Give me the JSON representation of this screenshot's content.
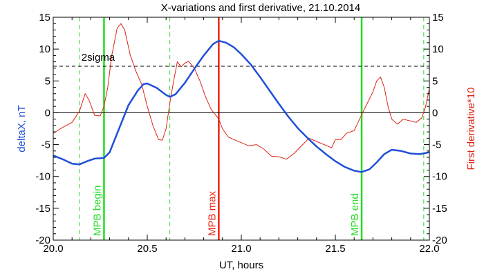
{
  "chart_data": {
    "type": "line",
    "title": "X-variations and first derivative, 21.10.2014",
    "xlabel": "UT, hours",
    "ylabel_left": "deltaX, nT",
    "ylabel_right": "First derivative*10",
    "xlim": [
      20.0,
      22.0
    ],
    "ylim": [
      -20,
      15
    ],
    "x_ticks": [
      "20.0",
      "20.5",
      "21.0",
      "21.5",
      "22.0"
    ],
    "x_tick_values": [
      20.0,
      20.5,
      21.0,
      21.5,
      22.0
    ],
    "y_ticks": [
      15,
      10,
      5,
      0,
      -5,
      -10,
      -15,
      -20
    ],
    "y_tick_labels": [
      "15",
      "10",
      "5",
      "0",
      "-5",
      "-10",
      "-15",
      "-20"
    ],
    "colors": {
      "deltax": "#1f4fd6",
      "derivative": "#dd2211",
      "mpb_boundary": "#22dd22",
      "mpb_max": "#ee2211",
      "reference": "#000000",
      "left_axis_label": "#1f4fd6",
      "right_axis_label": "#dd2211"
    },
    "threshold": {
      "label": "2sigma",
      "value": 7.3
    },
    "zero_line": 0,
    "markers": [
      {
        "label": "MPB begin",
        "x": 20.27,
        "style": "solid",
        "color": "#22dd22"
      },
      {
        "label": "MPB max",
        "x": 20.88,
        "style": "solid",
        "color": "#ee2211"
      },
      {
        "label": "MPB end",
        "x": 21.64,
        "style": "solid",
        "color": "#22dd22"
      }
    ],
    "dashed_markers": [
      20.14,
      20.62,
      21.97
    ],
    "series": [
      {
        "name": "deltaX",
        "color": "#1f4fd6",
        "x": [
          20.0,
          20.05,
          20.1,
          20.14,
          20.18,
          20.22,
          20.27,
          20.3,
          20.35,
          20.4,
          20.45,
          20.48,
          20.5,
          20.55,
          20.6,
          20.62,
          20.65,
          20.7,
          20.75,
          20.8,
          20.85,
          20.88,
          20.92,
          20.96,
          21.0,
          21.05,
          21.1,
          21.15,
          21.2,
          21.25,
          21.3,
          21.35,
          21.4,
          21.45,
          21.5,
          21.55,
          21.6,
          21.64,
          21.68,
          21.72,
          21.76,
          21.8,
          21.85,
          21.9,
          21.95,
          22.0
        ],
        "y": [
          -6.7,
          -7.3,
          -8.0,
          -8.1,
          -7.6,
          -7.2,
          -7.1,
          -6.2,
          -2.5,
          1.2,
          3.5,
          4.5,
          4.6,
          3.9,
          2.8,
          2.5,
          2.9,
          4.7,
          6.9,
          9.0,
          10.8,
          11.3,
          11.0,
          10.3,
          9.2,
          7.6,
          5.6,
          3.5,
          1.4,
          -0.6,
          -2.4,
          -3.9,
          -5.3,
          -6.5,
          -7.6,
          -8.5,
          -9.1,
          -9.3,
          -8.9,
          -7.8,
          -6.5,
          -5.8,
          -6.0,
          -6.4,
          -6.5,
          -6.2
        ]
      },
      {
        "name": "First derivative*10",
        "color": "#dd2211",
        "x": [
          20.0,
          20.05,
          20.1,
          20.14,
          20.17,
          20.19,
          20.22,
          20.25,
          20.27,
          20.29,
          20.31,
          20.34,
          20.36,
          20.38,
          20.41,
          20.44,
          20.47,
          20.5,
          20.53,
          20.56,
          20.58,
          20.6,
          20.62,
          20.64,
          20.66,
          20.68,
          20.7,
          20.72,
          20.75,
          20.78,
          20.81,
          20.84,
          20.86,
          20.88,
          20.9,
          20.93,
          20.96,
          21.0,
          21.04,
          21.08,
          21.12,
          21.16,
          21.2,
          21.24,
          21.28,
          21.32,
          21.36,
          21.4,
          21.44,
          21.48,
          21.5,
          21.53,
          21.56,
          21.6,
          21.64,
          21.67,
          21.7,
          21.72,
          21.74,
          21.76,
          21.78,
          21.8,
          21.83,
          21.86,
          21.9,
          21.93,
          21.96,
          21.98,
          22.0
        ],
        "y": [
          -3.2,
          -2.3,
          -1.5,
          0.3,
          3.0,
          2.0,
          -0.4,
          -0.5,
          1.0,
          4.0,
          8.8,
          13.3,
          14.0,
          13.0,
          9.0,
          6.5,
          4.5,
          1.0,
          -2.0,
          -4.2,
          -4.3,
          -2.5,
          1.5,
          5.0,
          8.0,
          7.2,
          7.8,
          8.1,
          7.0,
          5.0,
          2.5,
          0.5,
          -0.2,
          -1.0,
          -2.5,
          -3.8,
          -4.2,
          -4.7,
          -5.2,
          -5.0,
          -5.7,
          -6.8,
          -6.9,
          -7.3,
          -6.4,
          -5.2,
          -4.0,
          -4.5,
          -5.0,
          -5.5,
          -4.2,
          -4.2,
          -3.2,
          -2.8,
          -0.3,
          1.5,
          3.3,
          5.0,
          5.6,
          4.0,
          1.0,
          -1.0,
          -1.8,
          -1.0,
          -1.3,
          -1.5,
          -0.8,
          1.0,
          3.8
        ]
      }
    ]
  }
}
